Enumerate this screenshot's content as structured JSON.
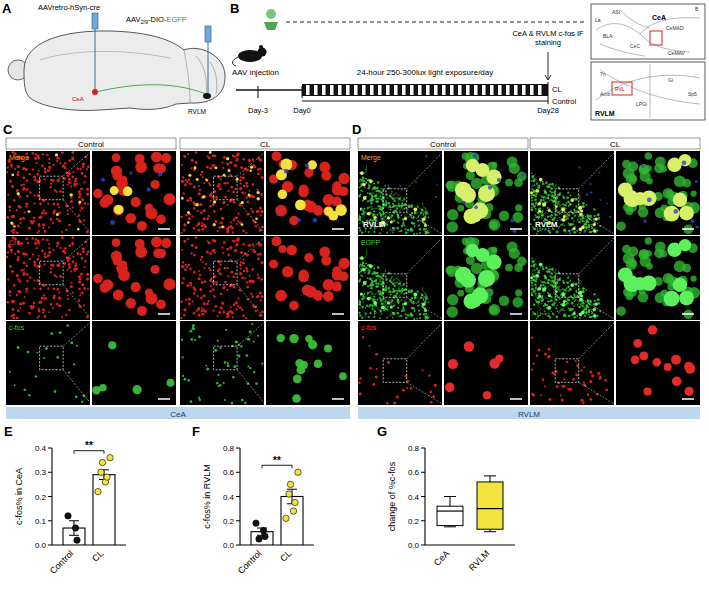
{
  "panel_a": {
    "letter": "A",
    "vector1": "AAVretro-hSyn-cre",
    "vector2": [
      "AAV",
      "2/9",
      "-DIO-",
      "EGFP"
    ],
    "regions": [
      "CeA",
      "RVLM"
    ]
  },
  "panel_b": {
    "letter": "B",
    "injection": "AAV injection",
    "light": "24-hour 250-300lux light exposure/day",
    "staining": "CeA & RVLM c-fos IF staining",
    "days": [
      "Day-3",
      "Day0",
      "Day28"
    ],
    "groups": [
      "CL",
      "Control"
    ]
  },
  "atlas": {
    "top_title": "CeA",
    "top_labels": [
      "La",
      "ASt",
      "BLA",
      "CeC",
      "CeMAD",
      "CeMAV",
      "B"
    ],
    "bottom_title": "RVLM",
    "bottom_labels": [
      "RVL",
      "LPGi",
      "Gi",
      "7n",
      "Amb",
      "Sp5"
    ]
  },
  "panel_c": {
    "letter": "C",
    "columns": [
      "Control",
      "CL"
    ],
    "rows": [
      "Merge",
      "Cre",
      "c-fos"
    ],
    "region": "CeA"
  },
  "panel_d": {
    "letter": "D",
    "columns": [
      "Control",
      "CL"
    ],
    "rows": [
      "Merge",
      "EGFP",
      "c-fos"
    ],
    "region": "RVLM",
    "inset_label": "RVLM"
  },
  "chart_data": [
    {
      "letter": "E",
      "type": "bar",
      "categories": [
        "Control",
        "CL"
      ],
      "values": [
        0.07,
        0.29
      ],
      "errors": [
        0.03,
        0.02
      ],
      "points": [
        [
          0.12,
          0.07,
          0.02
        ],
        [
          0.22,
          0.26,
          0.28,
          0.3,
          0.34,
          0.36
        ]
      ],
      "colors": [
        "#111111",
        "#f2e33d"
      ],
      "ylabel": "c-fos% in CeA",
      "ylim": [
        0,
        0.4
      ],
      "yticks": [
        {
          "value": 0,
          "label": "0.0"
        },
        0.1,
        0.2,
        0.3,
        0.4
      ],
      "annotation": "**"
    },
    {
      "letter": "F",
      "type": "bar",
      "categories": [
        "Control",
        "CL"
      ],
      "values": [
        0.11,
        0.4
      ],
      "errors": [
        0.03,
        0.06
      ],
      "points": [
        [
          0.18,
          0.12,
          0.07,
          0.05
        ],
        [
          0.22,
          0.28,
          0.35,
          0.42,
          0.5,
          0.6
        ]
      ],
      "colors": [
        "#111111",
        "#f2e33d"
      ],
      "ylabel": "c-fos% in RVLM",
      "ylim": [
        0,
        0.8
      ],
      "yticks": [
        {
          "value": 0,
          "label": "0.0"
        },
        0.2,
        0.4,
        0.6,
        0.8
      ],
      "annotation": "**"
    },
    {
      "letter": "G",
      "type": "box",
      "categories": [
        "CeA",
        "RVLM"
      ],
      "boxes": [
        {
          "min": 0.15,
          "q1": 0.16,
          "median": 0.28,
          "q3": 0.32,
          "max": 0.4
        },
        {
          "min": 0.11,
          "q1": 0.13,
          "median": 0.3,
          "q3": 0.52,
          "max": 0.57
        }
      ],
      "colors": [
        "#ffffff",
        "#f2e33d"
      ],
      "ylabel": "change of %c-fos",
      "ylim": [
        0,
        0.8
      ],
      "yticks": [
        {
          "value": 0,
          "label": "0.0"
        },
        0.2,
        0.4,
        0.6,
        0.8
      ]
    }
  ]
}
